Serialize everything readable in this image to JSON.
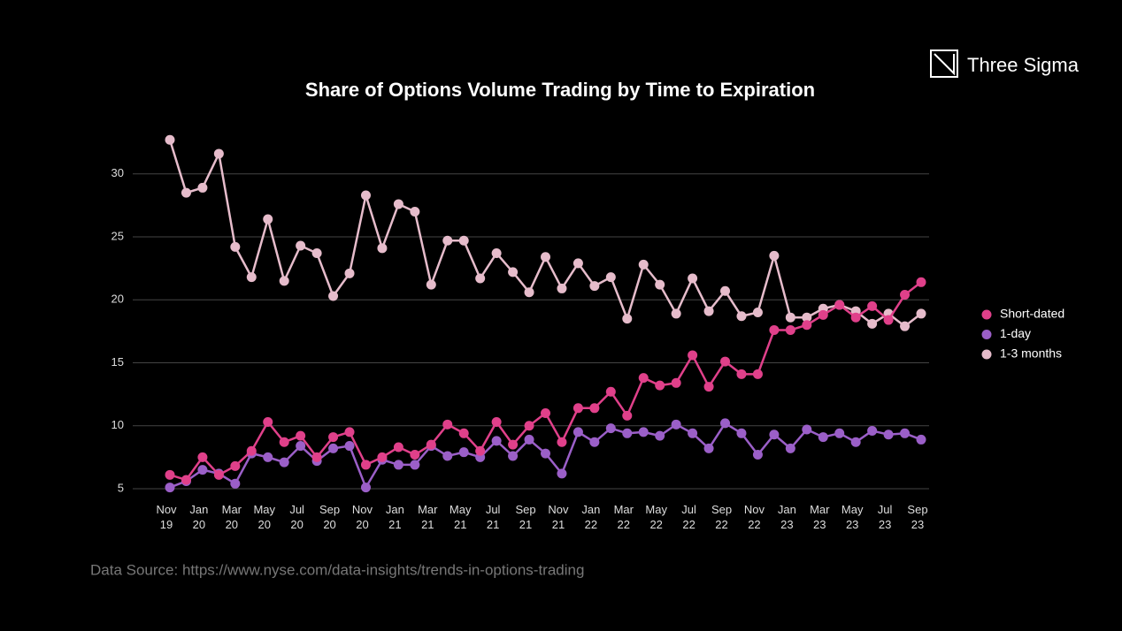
{
  "brand": "Three Sigma",
  "source": "Data Source: https://www.nyse.com/data-insights/trends-in-options-trading",
  "chart_data": {
    "type": "line",
    "title": "Share of Options Volume Trading by Time to Expiration",
    "categories": [
      "Nov 19",
      null,
      "Jan 20",
      null,
      "Mar 20",
      null,
      "May 20",
      null,
      "Jul 20",
      null,
      "Sep 20",
      null,
      "Nov 20",
      null,
      "Jan 21",
      null,
      "Mar 21",
      null,
      "May 21",
      null,
      "Jul 21",
      null,
      "Sep 21",
      null,
      "Nov 21",
      null,
      "Jan 22",
      null,
      "Mar 22",
      null,
      "May 22",
      null,
      "Jul 22",
      null,
      "Sep 22",
      null,
      "Nov 22",
      null,
      "Jan 23",
      null,
      "Mar 23",
      null,
      "May 23",
      null,
      "Jul 23",
      null,
      "Sep 23"
    ],
    "series": [
      {
        "name": "Short-dated",
        "color": "#e0408a",
        "values": [
          6.1,
          5.7,
          7.5,
          6.1,
          6.8,
          8.0,
          10.3,
          8.7,
          9.2,
          7.5,
          9.1,
          9.5,
          6.9,
          7.5,
          8.3,
          7.7,
          8.5,
          10.1,
          9.4,
          8.0,
          10.3,
          8.5,
          10.0,
          11.0,
          8.7,
          11.4,
          11.4,
          12.7,
          10.8,
          13.8,
          13.2,
          13.4,
          15.6,
          13.1,
          15.1,
          14.1,
          14.1,
          17.6,
          17.6,
          18.0,
          18.8,
          19.6,
          18.6,
          19.5,
          18.4,
          20.4,
          21.4
        ]
      },
      {
        "name": "1-day",
        "color": "#9b5fc8",
        "values": [
          5.1,
          5.6,
          6.5,
          6.2,
          5.4,
          7.8,
          7.5,
          7.1,
          8.4,
          7.2,
          8.2,
          8.4,
          5.1,
          7.3,
          6.9,
          6.9,
          8.4,
          7.6,
          7.9,
          7.5,
          8.8,
          7.6,
          8.9,
          7.8,
          6.2,
          9.5,
          8.7,
          9.8,
          9.4,
          9.5,
          9.2,
          10.1,
          9.4,
          8.2,
          10.2,
          9.4,
          7.7,
          9.3,
          8.2,
          9.7,
          9.1,
          9.4,
          8.7,
          9.6,
          9.3,
          9.4,
          8.9
        ]
      },
      {
        "name": "1-3 months",
        "color": "#e6bccb",
        "values": [
          32.7,
          28.5,
          28.9,
          31.6,
          24.2,
          21.8,
          26.4,
          21.5,
          24.3,
          23.7,
          20.3,
          22.1,
          28.3,
          24.1,
          27.6,
          27.0,
          21.2,
          24.7,
          24.7,
          21.7,
          23.7,
          22.2,
          20.6,
          23.4,
          20.9,
          22.9,
          21.1,
          21.8,
          18.5,
          22.8,
          21.2,
          18.9,
          21.7,
          19.1,
          20.7,
          18.7,
          19.0,
          23.5,
          18.6,
          18.6,
          19.3,
          19.6,
          19.1,
          18.1,
          18.9,
          17.9,
          18.9
        ]
      }
    ],
    "ylim": [
      5,
      33
    ],
    "yticks": [
      5,
      10,
      15,
      20,
      25,
      30
    ],
    "grid": true,
    "legend": "right"
  }
}
